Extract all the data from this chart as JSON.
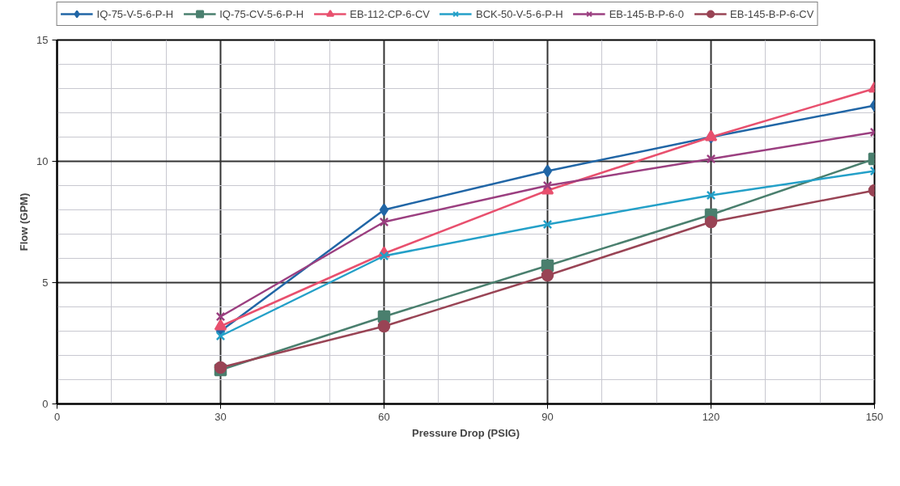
{
  "chart_data": {
    "type": "line",
    "xlabel": "Pressure Drop (PSIG)",
    "ylabel": "Flow (GPM)",
    "x": [
      30,
      60,
      90,
      120,
      150
    ],
    "xlim": [
      0,
      150
    ],
    "xticks": [
      0,
      30,
      60,
      90,
      120,
      150
    ],
    "ylim": [
      0,
      15
    ],
    "yticks": [
      0,
      5,
      10,
      15
    ],
    "grid": true,
    "legend": "top",
    "line_style": "solid",
    "series": [
      {
        "name": "IQ-75-V-5-6-P-H",
        "color": "#2166a6",
        "marker": "diamond",
        "values": [
          3.0,
          8.0,
          9.6,
          11.0,
          12.3
        ]
      },
      {
        "name": "IQ-75-CV-5-6-P-H",
        "color": "#4a7f6e",
        "marker": "square",
        "values": [
          1.4,
          3.6,
          5.7,
          7.8,
          10.1
        ]
      },
      {
        "name": "EB-112-CP-6-CV",
        "color": "#e8506e",
        "marker": "triangle",
        "values": [
          3.2,
          6.2,
          8.8,
          11.0,
          13.0
        ]
      },
      {
        "name": "BCK-50-V-5-6-P-H",
        "color": "#24a0c8",
        "marker": "cross",
        "values": [
          2.8,
          6.1,
          7.4,
          8.6,
          9.6
        ]
      },
      {
        "name": "EB-145-B-P-6-0",
        "color": "#9b3f80",
        "marker": "cross",
        "values": [
          3.6,
          7.5,
          9.0,
          10.1,
          11.2
        ]
      },
      {
        "name": "EB-145-B-P-6-CV",
        "color": "#994455",
        "marker": "circle",
        "values": [
          1.5,
          3.2,
          5.3,
          7.5,
          8.8
        ]
      }
    ]
  }
}
